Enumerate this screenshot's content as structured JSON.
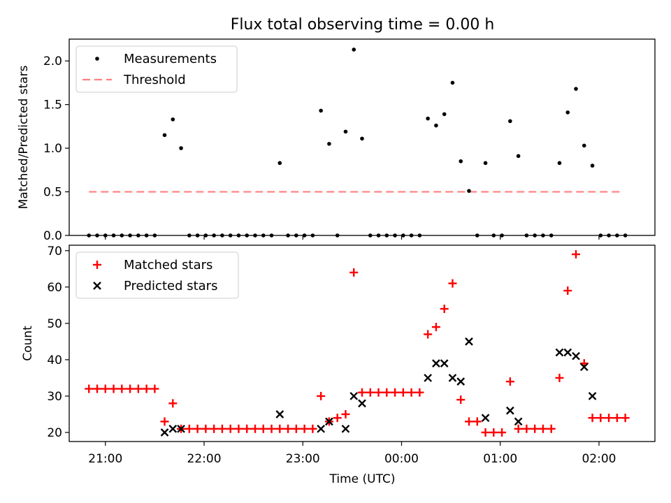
{
  "title": "Flux total observing time = 0.00 h",
  "colors": {
    "threshold": "#ff7f7f",
    "matched": "#ff0000",
    "predicted": "#000000",
    "measurements": "#000000"
  },
  "chart_data": [
    {
      "type": "scatter",
      "title": "Flux total observing time = 0.00 h",
      "xlabel": "",
      "ylabel": "Matched/Predicted stars",
      "ylim": [
        0,
        2.25
      ],
      "yticks": [
        0.0,
        0.5,
        1.0,
        1.5,
        2.0
      ],
      "ytick_labels": [
        "0.0",
        "0.5",
        "1.0",
        "1.5",
        "2.0"
      ],
      "xlim": [
        "20:38",
        "02:34"
      ],
      "legend_position": "top-left",
      "legend": [
        {
          "label": "Measurements",
          "marker": "dot"
        },
        {
          "label": "Threshold",
          "marker": "dashed-line"
        }
      ],
      "threshold": {
        "value": 0.5,
        "x": [
          "20:50",
          "02:15"
        ]
      },
      "series": [
        {
          "name": "Measurements",
          "marker": "dot",
          "points": [
            [
              "20:50",
              0
            ],
            [
              "20:55",
              0
            ],
            [
              "21:00",
              0
            ],
            [
              "21:05",
              0
            ],
            [
              "21:10",
              0
            ],
            [
              "21:15",
              0
            ],
            [
              "21:20",
              0
            ],
            [
              "21:25",
              0
            ],
            [
              "21:30",
              0
            ],
            [
              "21:36",
              1.15
            ],
            [
              "21:41",
              1.33
            ],
            [
              "21:46",
              1.0
            ],
            [
              "21:51",
              0
            ],
            [
              "21:56",
              0
            ],
            [
              "22:01",
              0
            ],
            [
              "22:06",
              0
            ],
            [
              "22:11",
              0
            ],
            [
              "22:16",
              0
            ],
            [
              "22:21",
              0
            ],
            [
              "22:26",
              0
            ],
            [
              "22:31",
              0
            ],
            [
              "22:36",
              0
            ],
            [
              "22:41",
              0
            ],
            [
              "22:46",
              0.83
            ],
            [
              "22:51",
              0
            ],
            [
              "22:56",
              0
            ],
            [
              "23:01",
              0
            ],
            [
              "23:06",
              0
            ],
            [
              "23:11",
              1.43
            ],
            [
              "23:16",
              1.05
            ],
            [
              "23:21",
              0
            ],
            [
              "23:26",
              1.19
            ],
            [
              "23:31",
              2.13
            ],
            [
              "23:36",
              1.11
            ],
            [
              "23:41",
              0
            ],
            [
              "23:46",
              0
            ],
            [
              "23:51",
              0
            ],
            [
              "23:56",
              0
            ],
            [
              "00:01",
              0
            ],
            [
              "00:06",
              0
            ],
            [
              "00:11",
              0
            ],
            [
              "00:16",
              1.34
            ],
            [
              "00:21",
              1.26
            ],
            [
              "00:26",
              1.39
            ],
            [
              "00:31",
              1.75
            ],
            [
              "00:36",
              0.85
            ],
            [
              "00:41",
              0.51
            ],
            [
              "00:46",
              0
            ],
            [
              "00:51",
              0.83
            ],
            [
              "00:56",
              0
            ],
            [
              "01:01",
              0
            ],
            [
              "01:06",
              1.31
            ],
            [
              "01:11",
              0.91
            ],
            [
              "01:16",
              0
            ],
            [
              "01:21",
              0
            ],
            [
              "01:26",
              0
            ],
            [
              "01:31",
              0
            ],
            [
              "01:36",
              0.83
            ],
            [
              "01:41",
              1.41
            ],
            [
              "01:46",
              1.68
            ],
            [
              "01:51",
              1.03
            ],
            [
              "01:56",
              0.8
            ],
            [
              "02:01",
              0
            ],
            [
              "02:06",
              0
            ],
            [
              "02:11",
              0
            ],
            [
              "02:16",
              0
            ]
          ]
        }
      ]
    },
    {
      "type": "scatter",
      "title": "",
      "xlabel": "Time (UTC)",
      "ylabel": "Count",
      "ylim": [
        17.5,
        71.5
      ],
      "yticks": [
        20,
        30,
        40,
        50,
        60,
        70
      ],
      "ytick_labels": [
        "20",
        "30",
        "40",
        "50",
        "60",
        "70"
      ],
      "xlim": [
        "20:38",
        "02:34"
      ],
      "xticks": [
        "21:00",
        "22:00",
        "23:00",
        "00:00",
        "01:00",
        "02:00"
      ],
      "legend_position": "top-left",
      "legend": [
        {
          "label": "Matched stars",
          "marker": "plus"
        },
        {
          "label": "Predicted stars",
          "marker": "x"
        }
      ],
      "series": [
        {
          "name": "Matched stars",
          "marker": "plus",
          "points": [
            [
              "20:50",
              32
            ],
            [
              "20:55",
              32
            ],
            [
              "21:00",
              32
            ],
            [
              "21:05",
              32
            ],
            [
              "21:10",
              32
            ],
            [
              "21:15",
              32
            ],
            [
              "21:20",
              32
            ],
            [
              "21:25",
              32
            ],
            [
              "21:30",
              32
            ],
            [
              "21:36",
              23
            ],
            [
              "21:41",
              28
            ],
            [
              "21:46",
              21
            ],
            [
              "21:51",
              21
            ],
            [
              "21:56",
              21
            ],
            [
              "22:01",
              21
            ],
            [
              "22:06",
              21
            ],
            [
              "22:11",
              21
            ],
            [
              "22:16",
              21
            ],
            [
              "22:21",
              21
            ],
            [
              "22:26",
              21
            ],
            [
              "22:31",
              21
            ],
            [
              "22:36",
              21
            ],
            [
              "22:41",
              21
            ],
            [
              "22:46",
              21
            ],
            [
              "22:51",
              21
            ],
            [
              "22:56",
              21
            ],
            [
              "23:01",
              21
            ],
            [
              "23:06",
              21
            ],
            [
              "23:11",
              30
            ],
            [
              "23:16",
              23
            ],
            [
              "23:21",
              24
            ],
            [
              "23:26",
              25
            ],
            [
              "23:31",
              64
            ],
            [
              "23:36",
              31
            ],
            [
              "23:41",
              31
            ],
            [
              "23:46",
              31
            ],
            [
              "23:51",
              31
            ],
            [
              "23:56",
              31
            ],
            [
              "00:01",
              31
            ],
            [
              "00:06",
              31
            ],
            [
              "00:11",
              31
            ],
            [
              "00:16",
              47
            ],
            [
              "00:21",
              49
            ],
            [
              "00:26",
              54
            ],
            [
              "00:31",
              61
            ],
            [
              "00:36",
              29
            ],
            [
              "00:41",
              23
            ],
            [
              "00:46",
              23
            ],
            [
              "00:51",
              20
            ],
            [
              "00:56",
              20
            ],
            [
              "01:01",
              20
            ],
            [
              "01:06",
              34
            ],
            [
              "01:11",
              21
            ],
            [
              "01:16",
              21
            ],
            [
              "01:21",
              21
            ],
            [
              "01:26",
              21
            ],
            [
              "01:31",
              21
            ],
            [
              "01:36",
              35
            ],
            [
              "01:41",
              59
            ],
            [
              "01:46",
              69
            ],
            [
              "01:51",
              39
            ],
            [
              "01:56",
              24
            ],
            [
              "02:01",
              24
            ],
            [
              "02:06",
              24
            ],
            [
              "02:11",
              24
            ],
            [
              "02:16",
              24
            ]
          ]
        },
        {
          "name": "Predicted stars",
          "marker": "x",
          "points": [
            [
              "21:36",
              20
            ],
            [
              "21:41",
              21
            ],
            [
              "21:46",
              21
            ],
            [
              "22:46",
              25
            ],
            [
              "23:11",
              21
            ],
            [
              "23:16",
              23
            ],
            [
              "23:26",
              21
            ],
            [
              "23:31",
              30
            ],
            [
              "23:36",
              28
            ],
            [
              "00:16",
              35
            ],
            [
              "00:21",
              39
            ],
            [
              "00:26",
              39
            ],
            [
              "00:31",
              35
            ],
            [
              "00:36",
              34
            ],
            [
              "00:41",
              45
            ],
            [
              "00:51",
              24
            ],
            [
              "01:06",
              26
            ],
            [
              "01:11",
              23
            ],
            [
              "01:36",
              42
            ],
            [
              "01:41",
              42
            ],
            [
              "01:46",
              41
            ],
            [
              "01:51",
              38
            ],
            [
              "01:56",
              30
            ]
          ]
        }
      ]
    }
  ]
}
